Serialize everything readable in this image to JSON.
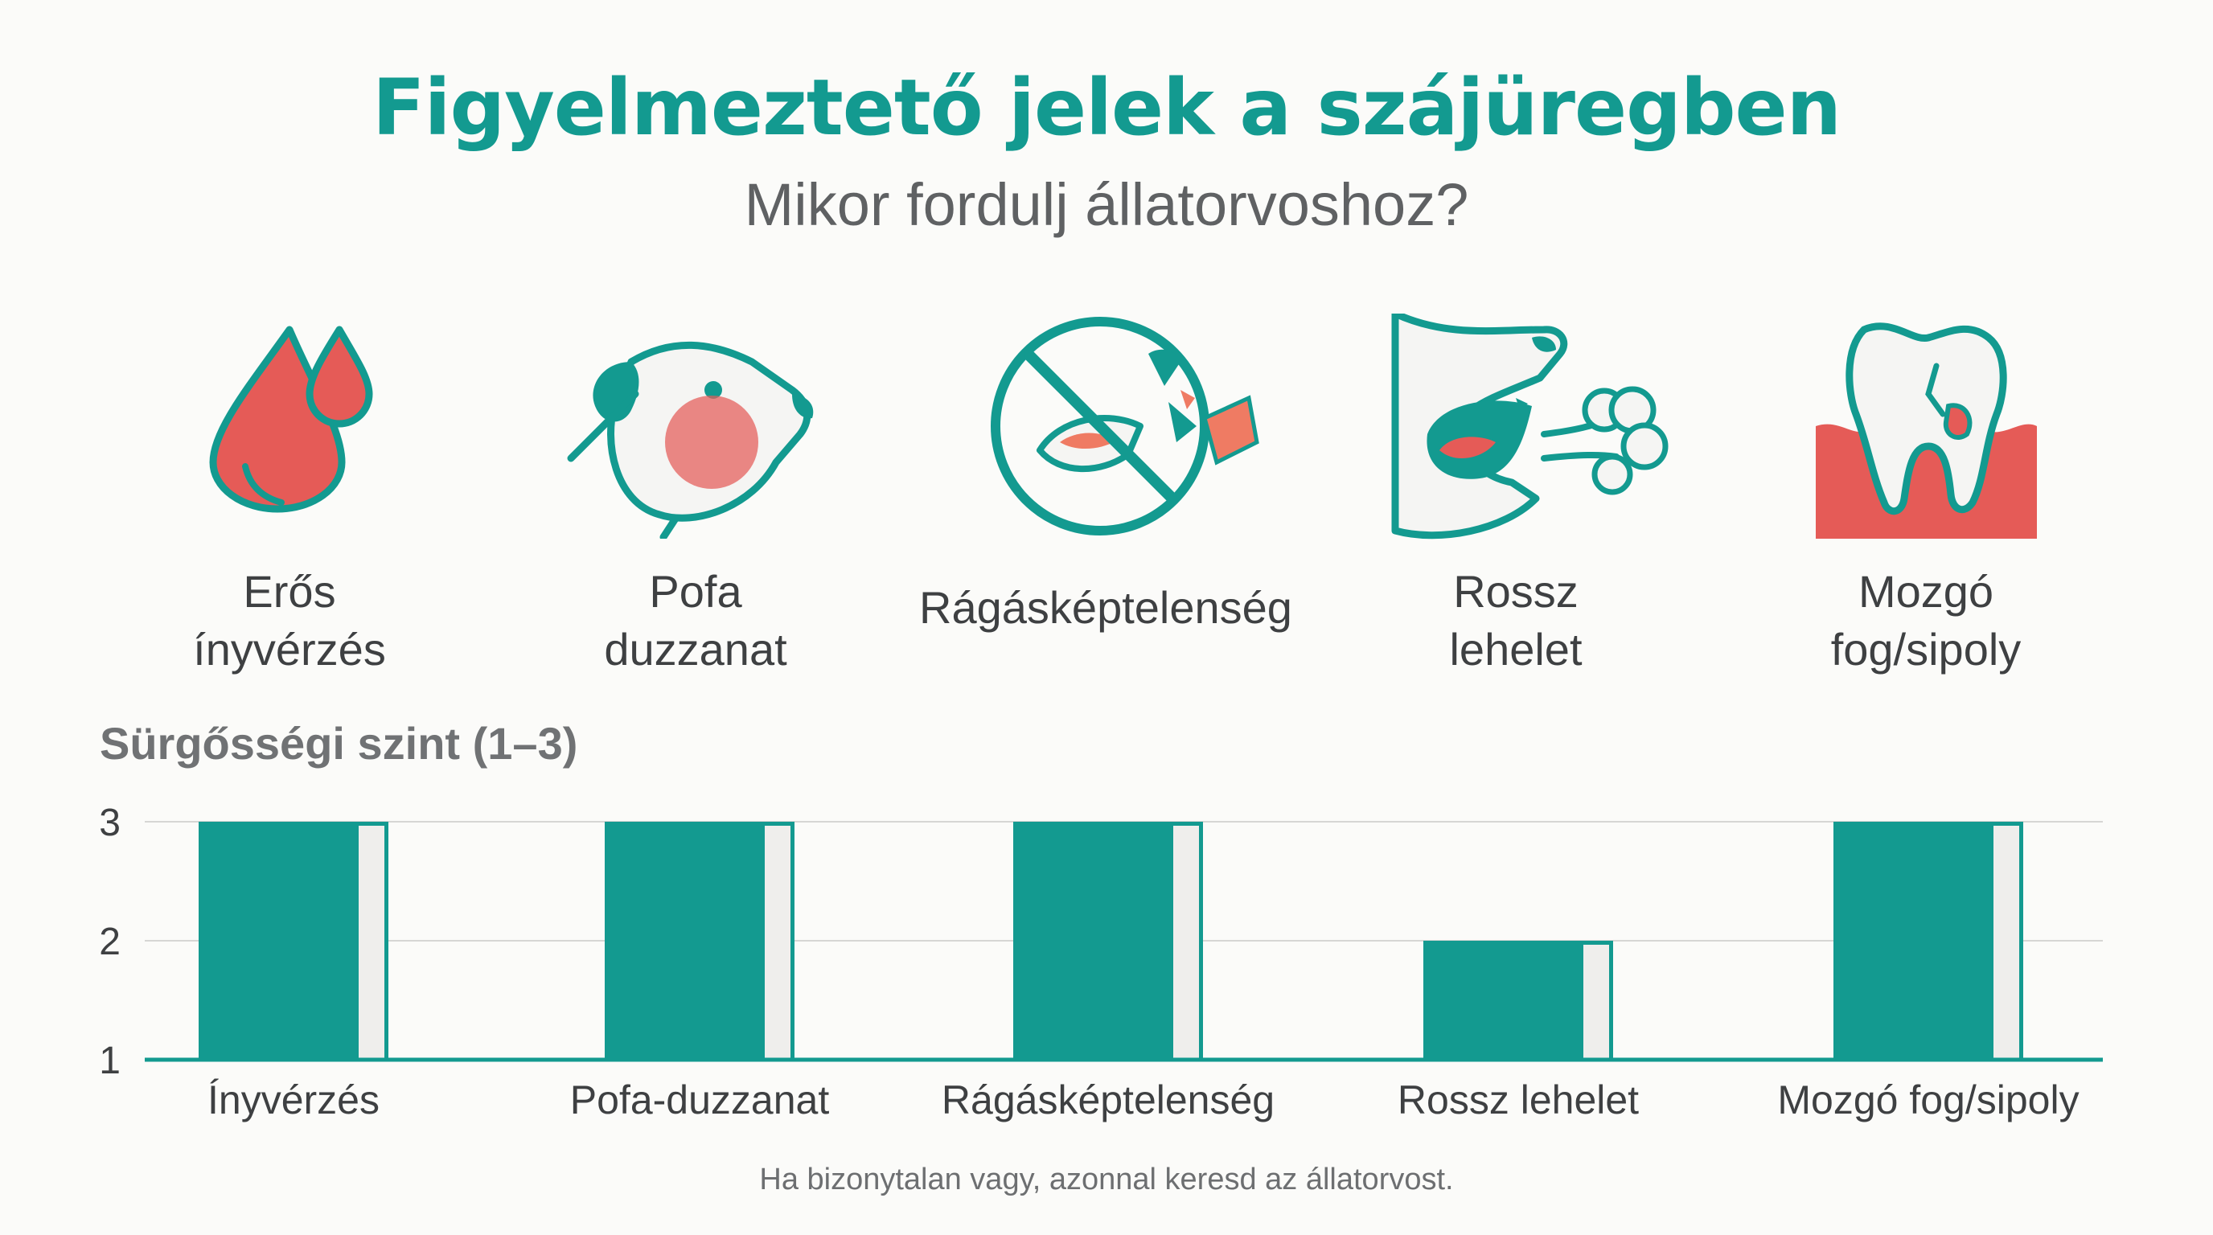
{
  "header": {
    "title": "Figyelmeztető jelek a szájüregben",
    "subtitle": "Mikor fordulj állatorvoshoz?"
  },
  "signs": [
    {
      "icon": "blood-drops-icon",
      "line1": "Erős",
      "line2": "ínyvérzés"
    },
    {
      "icon": "swollen-dog-face-icon",
      "line1": "Pofa",
      "line2": "duzzanat"
    },
    {
      "icon": "no-chewing-icon",
      "line1": "Rágásképtelenség",
      "line2": ""
    },
    {
      "icon": "bad-breath-icon",
      "line1": "Rossz",
      "line2": "lehelet"
    },
    {
      "icon": "loose-tooth-icon",
      "line1": "Mozgó",
      "line2": "fog/sipoly"
    }
  ],
  "chart_title": "Sürgősségi szint (1–3)",
  "chart_data": {
    "type": "bar",
    "title": "Sürgősségi szint (1–3)",
    "categories": [
      "Ínyvérzés",
      "Pofa-duzzanat",
      "Rágásképtelenség",
      "Rossz lehelet",
      "Mozgó fog/sipoly"
    ],
    "values": [
      3,
      3,
      3,
      2,
      3
    ],
    "yticks": [
      1,
      2,
      3
    ],
    "ylim": [
      1,
      3
    ],
    "xlabel": "",
    "ylabel": "",
    "grid": true,
    "legend": "none"
  },
  "footnote": "Ha bizonytalan vagy, azonnal keresd az állatorvost.",
  "colors": {
    "teal": "#139a90",
    "red": "#e55b57",
    "orange": "#ef7b63",
    "background": "#fbfbf9",
    "bar_highlight": "#efeeec"
  }
}
